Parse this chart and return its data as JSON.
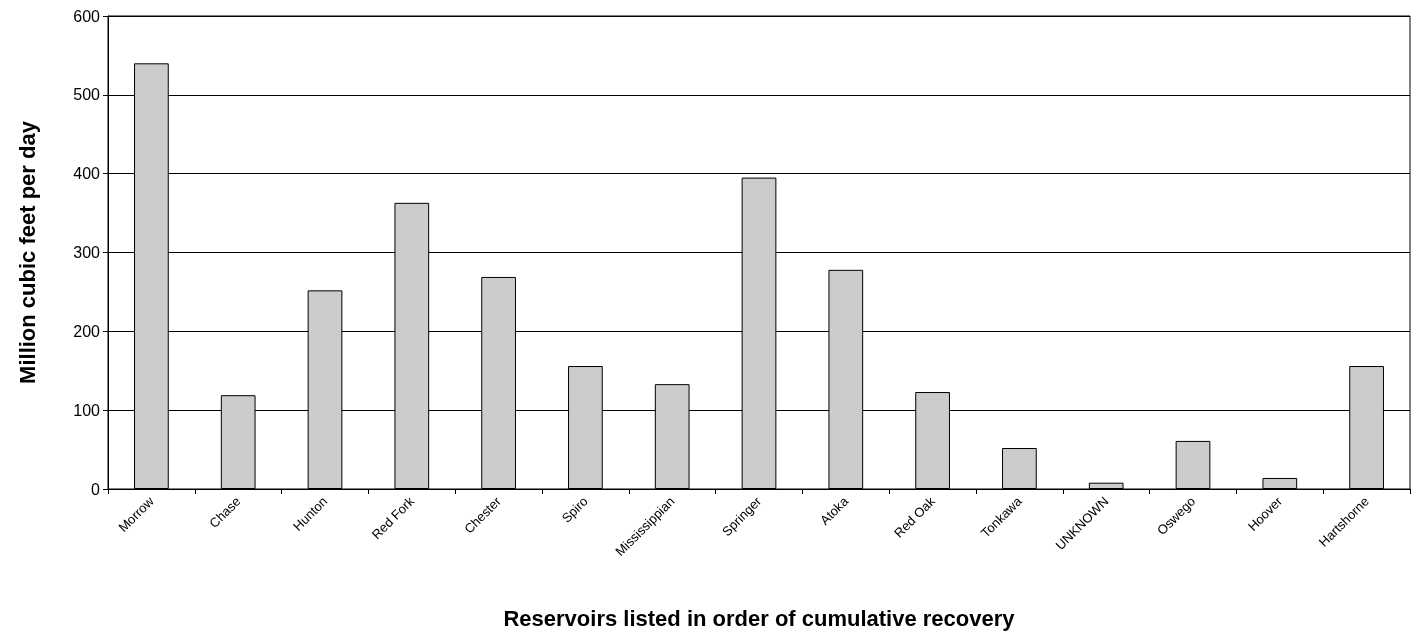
{
  "chart_data": {
    "type": "bar",
    "xlabel": "Reservoirs listed in order of cumulative recovery",
    "ylabel": "Million cubic feet per day",
    "categories": [
      "Morrow",
      "Chase",
      "Hunton",
      "Red Fork",
      "Chester",
      "Spiro",
      "Mississippian",
      "Springer",
      "Atoka",
      "Red Oak",
      "Tonkawa",
      "UNKNOWN",
      "Oswego",
      "Hoover",
      "Hartshorne"
    ],
    "values": [
      540,
      119,
      252,
      363,
      269,
      156,
      133,
      395,
      278,
      123,
      52,
      8,
      61,
      14,
      156
    ],
    "color": "#cccccc",
    "ylim": [
      0,
      600
    ],
    "yticks": [
      0,
      100,
      200,
      300,
      400,
      500,
      600
    ],
    "grid": "y"
  }
}
